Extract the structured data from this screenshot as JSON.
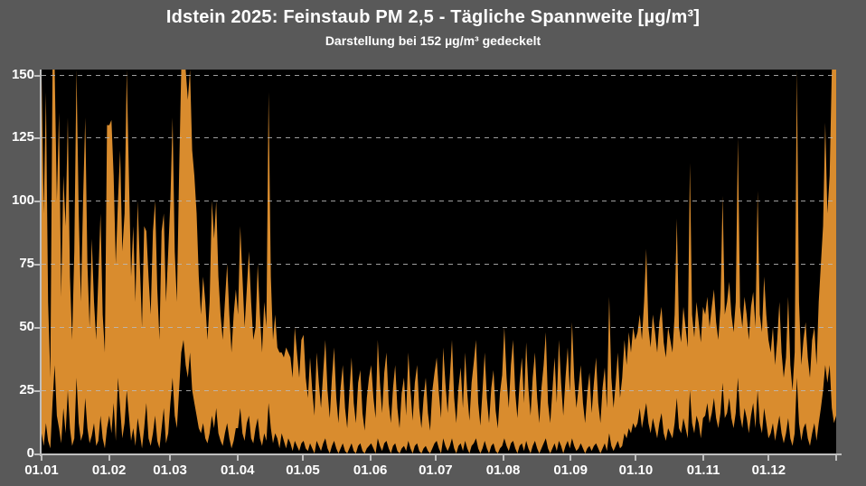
{
  "header": {
    "title": "Idstein 2025:  Feinstaub PM 2,5 - Tägliche Spannweite  [µg/m³]",
    "subtitle": "Darstellung bei 152 µg/m³ gedeckelt"
  },
  "chart_data": {
    "type": "area",
    "subtype": "daily-min-max-range",
    "title": "Idstein 2025:  Feinstaub PM 2,5 - Tägliche Spannweite  [µg/m³]",
    "subtitle": "Darstellung bei 152 µg/m³ gedeckelt",
    "ylabel": "",
    "xlabel": "",
    "ylim": [
      0,
      152
    ],
    "cap_value": 152,
    "y_ticks": [
      0,
      25,
      50,
      75,
      100,
      125,
      150
    ],
    "grid": "dashed-horizontal",
    "legend": "none",
    "x_tick_labels": [
      "01.01",
      "01.02",
      "01.03",
      "01.04",
      "01.05",
      "01.06",
      "01.07",
      "01.08",
      "01.09",
      "01.10",
      "01.11",
      "01.12"
    ],
    "month_day_offsets": [
      0,
      31,
      59,
      90,
      120,
      151,
      181,
      212,
      243,
      273,
      304,
      334
    ],
    "days_total": 365,
    "colors": {
      "area": "#D98C2E",
      "plot_bg": "#000000",
      "page_bg": "#595959",
      "grid": "#B9B9B9",
      "axis": "#BFBFBF",
      "text": "#FFFFFF"
    },
    "series": [
      {
        "name": "min",
        "values": [
          8,
          3,
          12,
          5,
          2,
          20,
          35,
          15,
          10,
          4,
          18,
          8,
          25,
          10,
          3,
          6,
          30,
          12,
          5,
          8,
          22,
          10,
          4,
          7,
          12,
          3,
          5,
          15,
          6,
          2,
          10,
          15,
          8,
          20,
          5,
          30,
          18,
          6,
          12,
          25,
          15,
          5,
          10,
          3,
          14,
          8,
          2,
          10,
          20,
          6,
          3,
          8,
          15,
          5,
          2,
          10,
          18,
          4,
          8,
          20,
          30,
          15,
          10,
          25,
          40,
          45,
          35,
          30,
          40,
          25,
          20,
          15,
          10,
          8,
          12,
          6,
          4,
          8,
          15,
          10,
          18,
          8,
          5,
          3,
          8,
          12,
          6,
          2,
          5,
          10,
          10,
          18,
          8,
          5,
          12,
          15,
          6,
          4,
          10,
          14,
          6,
          3,
          8,
          5,
          20,
          10,
          4,
          8,
          6,
          2,
          8,
          5,
          2,
          6,
          4,
          1,
          5,
          3,
          1,
          4,
          5,
          2,
          1,
          4,
          2,
          0,
          5,
          3,
          1,
          4,
          6,
          2,
          0,
          3,
          5,
          2,
          0,
          2,
          4,
          1,
          0,
          2,
          4,
          1,
          0,
          3,
          4,
          1,
          0,
          2,
          3,
          4,
          2,
          0,
          6,
          3,
          1,
          4,
          5,
          2,
          0,
          3,
          4,
          1,
          0,
          2,
          3,
          1,
          5,
          2,
          0,
          3,
          4,
          1,
          0,
          2,
          3,
          1,
          0,
          2,
          4,
          5,
          2,
          0,
          6,
          3,
          1,
          3,
          6,
          2,
          0,
          3,
          4,
          1,
          5,
          2,
          0,
          3,
          4,
          6,
          2,
          0,
          2,
          5,
          2,
          0,
          3,
          4,
          1,
          0,
          2,
          3,
          6,
          3,
          1,
          4,
          5,
          2,
          0,
          3,
          4,
          1,
          5,
          2,
          0,
          3,
          5,
          2,
          0,
          2,
          4,
          6,
          2,
          0,
          2,
          4,
          1,
          5,
          3,
          0,
          3,
          5,
          2,
          6,
          3,
          1,
          2,
          4,
          2,
          0,
          2,
          3,
          1,
          3,
          4,
          2,
          0,
          2,
          4,
          1,
          8,
          3,
          1,
          3,
          5,
          2,
          3,
          8,
          6,
          10,
          8,
          12,
          10,
          12,
          18,
          10,
          15,
          20,
          12,
          8,
          14,
          10,
          6,
          12,
          16,
          8,
          5,
          10,
          8,
          6,
          12,
          22,
          10,
          8,
          14,
          10,
          6,
          25,
          12,
          8,
          15,
          12,
          6,
          14,
          15,
          20,
          12,
          16,
          22,
          14,
          10,
          16,
          28,
          14,
          16,
          22,
          14,
          10,
          16,
          30,
          15,
          10,
          18,
          14,
          8,
          15,
          20,
          10,
          25,
          12,
          8,
          18,
          12,
          6,
          8,
          12,
          5,
          10,
          15,
          8,
          4,
          8,
          14,
          6,
          3,
          8,
          30,
          12,
          5,
          10,
          12,
          6,
          3,
          8,
          12,
          5,
          12,
          18,
          25,
          35,
          28,
          35,
          18,
          12,
          15
        ]
      },
      {
        "name": "max",
        "values": [
          150,
          95,
          143,
          60,
          30,
          152,
          152,
          100,
          135,
          62,
          110,
          90,
          133,
          70,
          45,
          80,
          152,
          95,
          60,
          100,
          133,
          75,
          50,
          85,
          60,
          45,
          70,
          95,
          55,
          40,
          130,
          130,
          132,
          110,
          75,
          100,
          120,
          80,
          95,
          152,
          110,
          70,
          90,
          60,
          100,
          75,
          50,
          90,
          88,
          70,
          55,
          88,
          100,
          65,
          45,
          88,
          95,
          60,
          80,
          100,
          133,
          80,
          60,
          110,
          152,
          152,
          152,
          140,
          152,
          120,
          110,
          95,
          70,
          55,
          70,
          60,
          45,
          60,
          100,
          85,
          100,
          70,
          55,
          45,
          60,
          75,
          55,
          40,
          55,
          65,
          55,
          90,
          70,
          50,
          65,
          80,
          60,
          45,
          50,
          75,
          55,
          40,
          60,
          50,
          143,
          70,
          45,
          55,
          42,
          40,
          40,
          38,
          42,
          40,
          38,
          30,
          50,
          40,
          30,
          45,
          47,
          30,
          22,
          38,
          25,
          15,
          40,
          28,
          18,
          32,
          45,
          25,
          14,
          30,
          42,
          22,
          12,
          26,
          35,
          18,
          10,
          24,
          38,
          20,
          12,
          28,
          33,
          16,
          9,
          22,
          30,
          35,
          22,
          14,
          45,
          28,
          16,
          32,
          40,
          20,
          12,
          26,
          35,
          18,
          10,
          24,
          30,
          15,
          40,
          25,
          13,
          28,
          35,
          18,
          10,
          22,
          30,
          16,
          9,
          25,
          32,
          38,
          24,
          14,
          42,
          28,
          16,
          30,
          45,
          22,
          12,
          26,
          34,
          18,
          40,
          24,
          13,
          28,
          36,
          45,
          20,
          11,
          25,
          40,
          22,
          12,
          26,
          33,
          17,
          10,
          24,
          31,
          50,
          30,
          18,
          35,
          45,
          24,
          14,
          28,
          38,
          20,
          44,
          26,
          15,
          30,
          40,
          22,
          12,
          26,
          35,
          48,
          20,
          12,
          25,
          38,
          20,
          45,
          28,
          15,
          30,
          42,
          24,
          52,
          30,
          18,
          26,
          35,
          20,
          12,
          24,
          32,
          16,
          28,
          38,
          20,
          12,
          26,
          34,
          18,
          62,
          30,
          18,
          28,
          40,
          22,
          30,
          45,
          35,
          48,
          40,
          50,
          45,
          48,
          55,
          45,
          60,
          81,
          50,
          42,
          55,
          48,
          40,
          52,
          58,
          44,
          38,
          50,
          45,
          40,
          55,
          93,
          50,
          44,
          58,
          50,
          42,
          115,
          55,
          46,
          60,
          52,
          44,
          58,
          55,
          62,
          50,
          58,
          65,
          52,
          45,
          58,
          102,
          55,
          60,
          68,
          55,
          48,
          60,
          125,
          58,
          50,
          62,
          55,
          45,
          58,
          64,
          50,
          104,
          55,
          48,
          70,
          55,
          45,
          40,
          50,
          35,
          45,
          60,
          40,
          30,
          38,
          62,
          35,
          25,
          40,
          152,
          60,
          35,
          45,
          52,
          38,
          30,
          45,
          50,
          35,
          60,
          75,
          90,
          131,
          95,
          110,
          152,
          152,
          152
        ]
      }
    ]
  }
}
